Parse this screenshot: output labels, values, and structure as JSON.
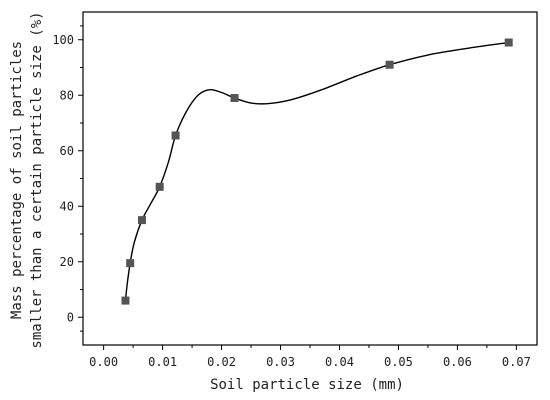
{
  "chart_data": {
    "type": "scatter",
    "title": "",
    "xlabel": "Soil particle size (mm)",
    "ylabel_line1": "Mass percentage of soil particles",
    "ylabel_line2": "smaller than a certain particle size (%)",
    "xlim": [
      -0.0035,
      0.0735
    ],
    "ylim": [
      -10,
      110
    ],
    "xticks": [
      0.0,
      0.01,
      0.02,
      0.03,
      0.04,
      0.05,
      0.06,
      0.07
    ],
    "xtick_labels": [
      "0.00",
      "0.01",
      "0.02",
      "0.03",
      "0.04",
      "0.05",
      "0.06",
      "0.07"
    ],
    "yticks": [
      0,
      20,
      40,
      60,
      80,
      100
    ],
    "ytick_labels": [
      "0",
      "20",
      "40",
      "60",
      "80",
      "100"
    ],
    "grid": false,
    "legend": "none",
    "series": [
      {
        "x": [
          0.0037,
          0.0045,
          0.0065,
          0.0095,
          0.0122,
          0.0222,
          0.0485,
          0.0687
        ],
        "y": [
          6,
          19.5,
          35,
          47,
          65.5,
          79,
          91,
          99
        ],
        "marker": "square",
        "color": "#555555"
      }
    ],
    "smooth_curve": {
      "x": [
        0.0037,
        0.004,
        0.0045,
        0.0052,
        0.0065,
        0.008,
        0.0095,
        0.011,
        0.0122,
        0.014,
        0.016,
        0.018,
        0.02,
        0.0222,
        0.025,
        0.028,
        0.032,
        0.037,
        0.043,
        0.0485,
        0.055,
        0.062,
        0.0687
      ],
      "y": [
        6,
        12,
        19.5,
        27,
        35,
        41,
        47,
        56,
        65.5,
        74,
        80,
        82,
        81,
        79,
        77.2,
        77,
        78.5,
        82,
        87,
        91,
        94.5,
        97,
        99
      ],
      "color": "#000000"
    }
  }
}
